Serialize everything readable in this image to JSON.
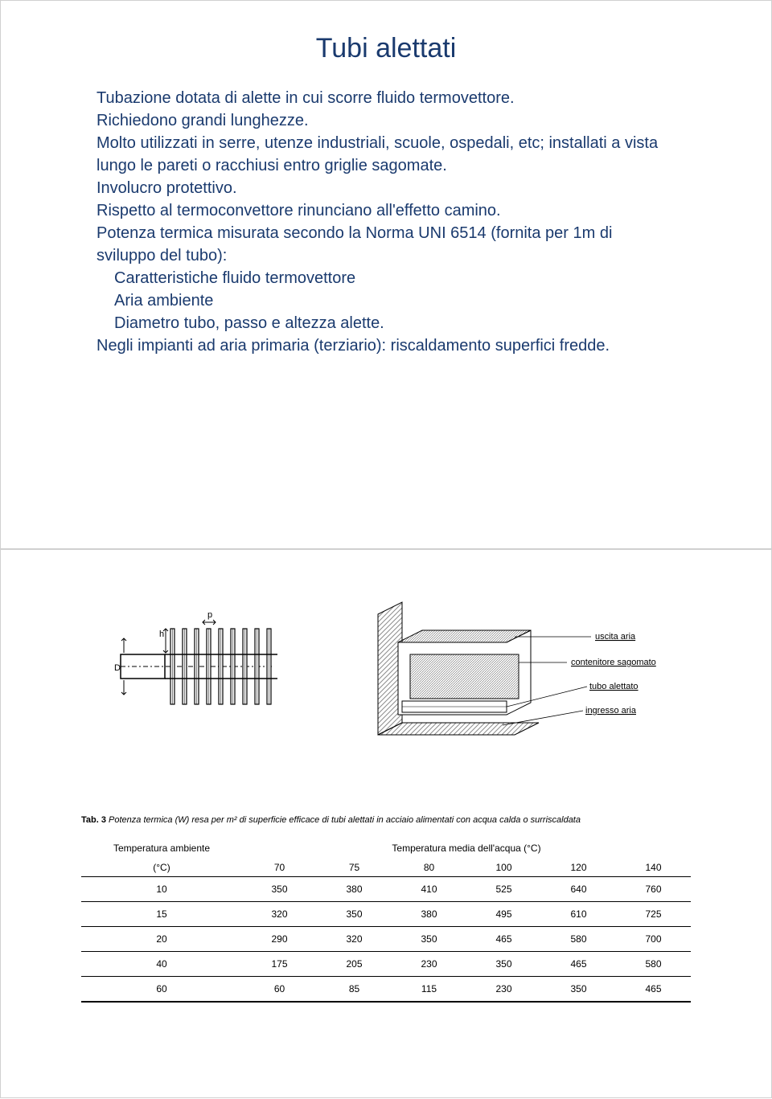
{
  "slide1": {
    "title": "Tubi alettati",
    "paragraphs": [
      "Tubazione dotata di alette in cui scorre fluido termovettore.",
      "Richiedono grandi lunghezze.",
      "Molto utilizzati in serre, utenze industriali, scuole, ospedali, etc; installati a vista lungo le pareti o racchiusi entro griglie sagomate.",
      "Involucro protettivo.",
      "Rispetto al termoconvettore rinunciano all'effetto camino.",
      "Potenza termica misurata secondo la Norma UNI 6514 (fornita per 1m di sviluppo del tubo):"
    ],
    "bullets": [
      "Caratteristiche fluido termovettore",
      "Aria ambiente",
      "Diametro tubo, passo e altezza alette."
    ],
    "closing": "Negli impianti ad aria primaria (terziario): riscaldamento superfici fredde.",
    "text_color": "#1a3a6e",
    "title_fontsize": 34,
    "body_fontsize": 20
  },
  "slide2": {
    "diagram_left": {
      "label_D": "D",
      "label_h": "h",
      "label_p": "p",
      "fin_count": 9,
      "tube_stroke": "#000000",
      "fin_stroke": "#000000"
    },
    "diagram_right": {
      "labels": {
        "l1": "uscita aria",
        "l2": "contenitore sagomato",
        "l3": "tubo alettato",
        "l4": "ingresso aria"
      },
      "fill_hatch": "#8c8c8c",
      "stroke": "#000000"
    },
    "caption_prefix": "Tab. 3",
    "caption_text": "Potenza termica (W) resa per m² di superficie efficace di tubi alettati in acciaio alimentati con acqua calda o surriscaldata",
    "table": {
      "left_header_line1": "Temperatura ambiente",
      "left_header_line2": "(°C)",
      "right_header": "Temperatura media dell'acqua (°C)",
      "water_temps": [
        "70",
        "75",
        "80",
        "100",
        "120",
        "140"
      ],
      "rows": [
        {
          "amb": "10",
          "vals": [
            "350",
            "380",
            "410",
            "525",
            "640",
            "760"
          ]
        },
        {
          "amb": "15",
          "vals": [
            "320",
            "350",
            "380",
            "495",
            "610",
            "725"
          ]
        },
        {
          "amb": "20",
          "vals": [
            "290",
            "320",
            "350",
            "465",
            "580",
            "700"
          ]
        },
        {
          "amb": "40",
          "vals": [
            "175",
            "205",
            "230",
            "350",
            "465",
            "580"
          ]
        },
        {
          "amb": "60",
          "vals": [
            "60",
            "85",
            "115",
            "230",
            "350",
            "465"
          ]
        }
      ],
      "border_color": "#000000",
      "font_size": 12
    }
  }
}
